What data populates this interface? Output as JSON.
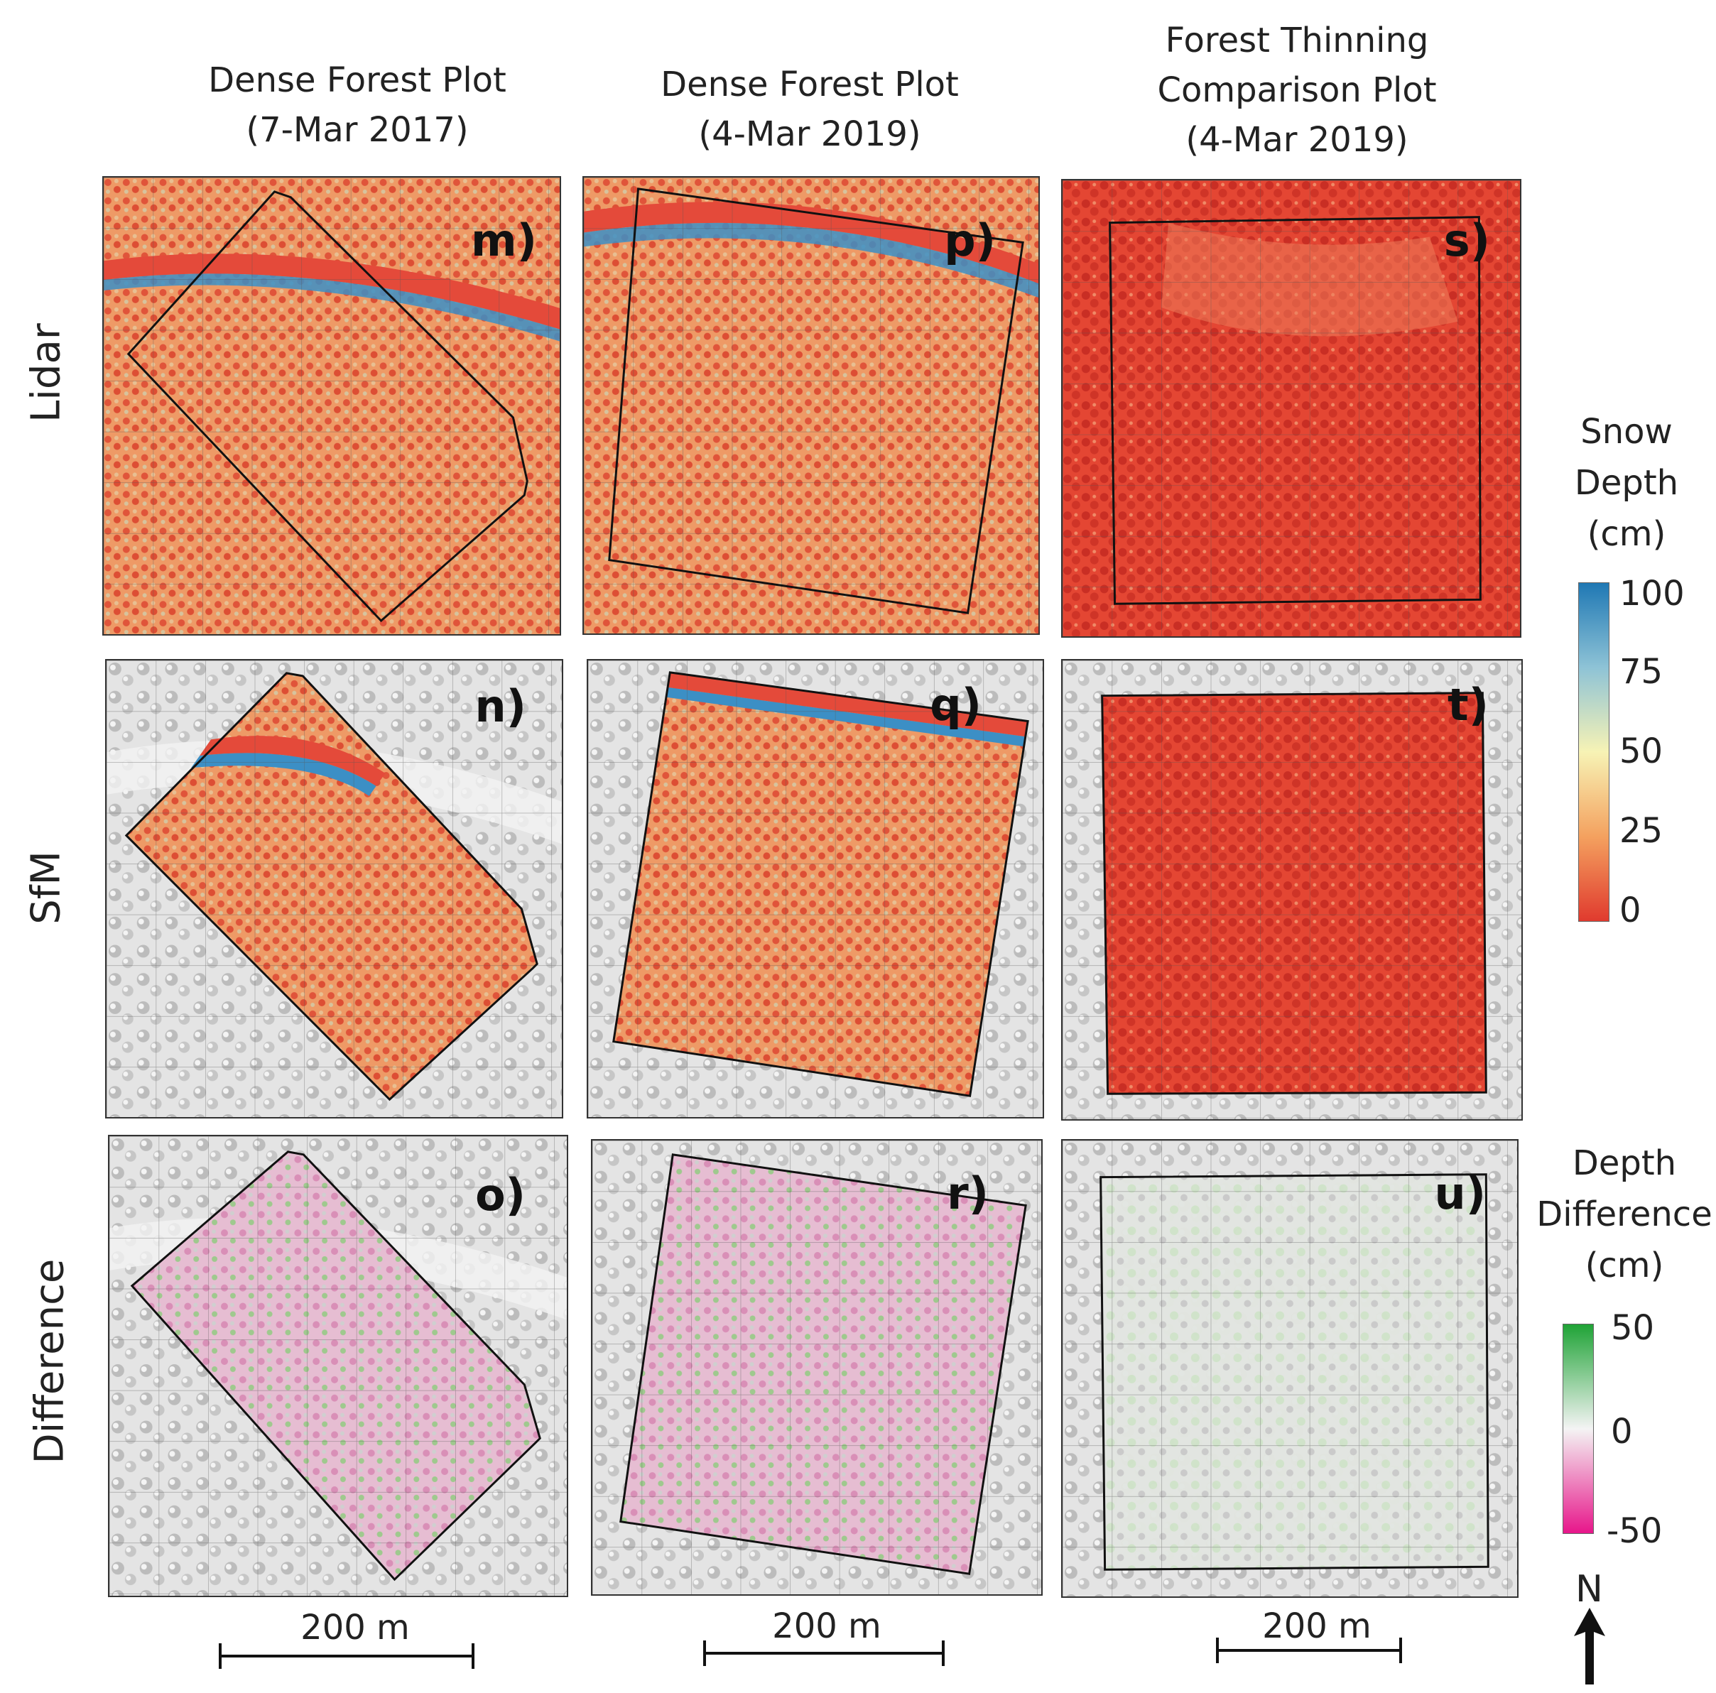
{
  "columns": [
    {
      "line1": "Dense Forest Plot",
      "line2": "(7-Mar 2017)",
      "line3": ""
    },
    {
      "line1": "Dense Forest Plot",
      "line2": "(4-Mar 2019)",
      "line3": ""
    },
    {
      "line1": "Forest Thinning",
      "line2": "Comparison Plot",
      "line3": "(4-Mar 2019)"
    }
  ],
  "rows": [
    "Lidar",
    "SfM",
    "Difference"
  ],
  "panels": {
    "m": "m)",
    "n": "n)",
    "o": "o)",
    "p": "p)",
    "q": "q)",
    "r": "r)",
    "s": "s)",
    "t": "t)",
    "u": "u)"
  },
  "snow_legend": {
    "title1": "Snow",
    "title2": "Depth",
    "title3": "(cm)",
    "ticks": [
      "100",
      "75",
      "50",
      "25",
      "0"
    ],
    "colors": [
      "#1f78b4",
      "#8ec3d6",
      "#f7f3b5",
      "#f4a15f",
      "#e03a2e"
    ]
  },
  "diff_legend": {
    "title1": "Depth",
    "title2": "Difference",
    "title3": "(cm)",
    "ticks": [
      "50",
      "0",
      "-50"
    ],
    "colors": [
      "#1fa336",
      "#f4f4f4",
      "#e7168a"
    ]
  },
  "scale_bars": [
    "200 m",
    "200 m",
    "200 m"
  ],
  "north": "N"
}
